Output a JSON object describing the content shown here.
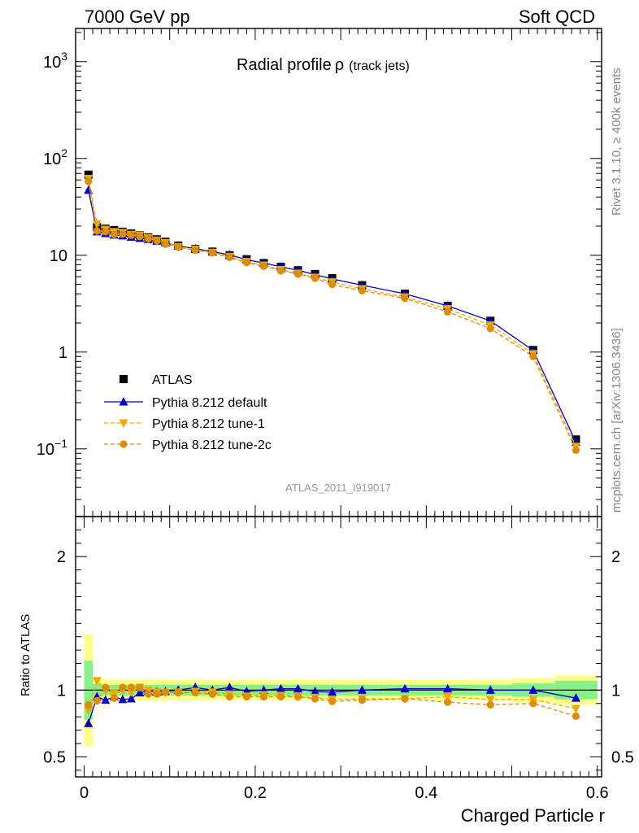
{
  "header": {
    "left": "7000 GeV pp",
    "right": "Soft QCD",
    "side_rivet": "Rivet 3.1.10, ≥ 400k events",
    "side_mcplots": "mcplots.cern.ch [arXiv:1306.3436]",
    "watermark": "ATLAS_2011_I919017"
  },
  "colors": {
    "atlas": "#000000",
    "default": "#0000cc",
    "tune1": "#f0a800",
    "tune2c": "#e08c00",
    "band_green": "#88f088",
    "band_yellow": "#ffff88"
  },
  "chart_data": [
    {
      "type": "line",
      "title": "Radial profile",
      "title_symbol": "ρ",
      "title_suffix": "(track jets)",
      "yscale": "log",
      "ylim": [
        0.02,
        2200
      ],
      "y_ticks": [
        {
          "value": 0.1,
          "base": "10",
          "exp": "−1"
        },
        {
          "value": 1,
          "label": "1"
        },
        {
          "value": 10,
          "label": "10"
        },
        {
          "value": 100,
          "base": "10",
          "exp": "2"
        },
        {
          "value": 1000,
          "base": "10",
          "exp": "3"
        }
      ],
      "legend": [
        "ATLAS",
        "Pythia 8.212 default",
        "Pythia 8.212 tune-1",
        "Pythia 8.212 tune-2c"
      ],
      "legend_position": "bottom-left",
      "x": [
        0.005,
        0.015,
        0.025,
        0.035,
        0.045,
        0.055,
        0.065,
        0.075,
        0.085,
        0.095,
        0.11,
        0.13,
        0.15,
        0.17,
        0.19,
        0.21,
        0.23,
        0.25,
        0.27,
        0.29,
        0.325,
        0.375,
        0.425,
        0.475,
        0.525,
        0.575
      ],
      "series": [
        {
          "name": "ATLAS",
          "values": [
            68,
            19.5,
            18.8,
            18.2,
            17.5,
            16.8,
            16.1,
            15.3,
            14.6,
            13.8,
            12.6,
            11.6,
            10.9,
            10.0,
            9.1,
            8.3,
            7.6,
            7.0,
            6.4,
            5.8,
            4.9,
            4.0,
            3.0,
            2.1,
            1.05,
            0.125
          ]
        },
        {
          "name": "Pythia 8.212 default",
          "values": [
            47,
            17.5,
            16.8,
            16.2,
            15.9,
            15.4,
            15.0,
            14.6,
            14.0,
            13.4,
            12.5,
            11.7,
            10.9,
            10.1,
            9.0,
            8.3,
            7.6,
            7.0,
            6.3,
            5.7,
            4.9,
            4.0,
            3.0,
            2.1,
            1.04,
            0.117
          ]
        },
        {
          "name": "Pythia 8.212 tune-1",
          "values": [
            62,
            21,
            18.5,
            17.5,
            17.2,
            16.4,
            16.1,
            15.1,
            14.3,
            13.5,
            12.3,
            11.5,
            10.7,
            9.7,
            8.6,
            7.9,
            7.1,
            6.5,
            5.9,
            5.3,
            4.5,
            3.7,
            2.8,
            1.9,
            0.96,
            0.106
          ]
        },
        {
          "name": "Pythia 8.212 tune-2c",
          "values": [
            58,
            17.8,
            17.5,
            16.4,
            16.5,
            16.1,
            15.6,
            14.8,
            14.1,
            13.0,
            12.1,
            11.3,
            10.6,
            9.5,
            8.4,
            7.7,
            6.9,
            6.4,
            5.8,
            5.0,
            4.3,
            3.6,
            2.6,
            1.75,
            0.9,
            0.097
          ]
        }
      ]
    },
    {
      "type": "line",
      "ylabel": "Ratio to ATLAS",
      "xlabel": "Charged Particle r",
      "xlim": [
        -0.01,
        0.605
      ],
      "ylim": [
        0.35,
        2.3
      ],
      "y_ticks": [
        0.5,
        1,
        2
      ],
      "y_tick_labels": [
        "0.5",
        "1",
        "2"
      ],
      "x_ticks": [
        0,
        0.2,
        0.4,
        0.6
      ],
      "x_tick_labels": [
        "0",
        "0.2",
        "0.4",
        "0.6"
      ],
      "reference": 1,
      "bands": {
        "bin_edges": [
          0.0,
          0.01,
          0.02,
          0.03,
          0.04,
          0.05,
          0.06,
          0.07,
          0.08,
          0.09,
          0.1,
          0.12,
          0.14,
          0.16,
          0.18,
          0.2,
          0.22,
          0.24,
          0.26,
          0.28,
          0.3,
          0.35,
          0.4,
          0.45,
          0.5,
          0.55,
          0.6
        ],
        "green": [
          0.22,
          0.045,
          0.04,
          0.04,
          0.04,
          0.04,
          0.04,
          0.04,
          0.04,
          0.04,
          0.04,
          0.04,
          0.04,
          0.04,
          0.04,
          0.04,
          0.04,
          0.04,
          0.04,
          0.04,
          0.04,
          0.04,
          0.04,
          0.04,
          0.05,
          0.07
        ],
        "yellow": [
          0.42,
          0.09,
          0.085,
          0.08,
          0.08,
          0.08,
          0.08,
          0.08,
          0.08,
          0.08,
          0.075,
          0.075,
          0.075,
          0.075,
          0.075,
          0.075,
          0.075,
          0.075,
          0.075,
          0.075,
          0.075,
          0.075,
          0.075,
          0.075,
          0.09,
          0.11
        ]
      },
      "series": [
        {
          "name": "Pythia 8.212 default",
          "values": [
            0.75,
            0.95,
            0.925,
            0.95,
            0.93,
            0.935,
            0.98,
            0.99,
            0.985,
            0.99,
            1.0,
            1.02,
            1.0,
            1.02,
            0.99,
            1.0,
            1.01,
            1.01,
            0.99,
            0.985,
            1.0,
            1.01,
            1.01,
            1.0,
            1.0,
            0.94
          ]
        },
        {
          "name": "Pythia 8.212 tune-1",
          "values": [
            0.85,
            1.07,
            1.0,
            0.98,
            1.0,
            0.985,
            1.02,
            1.0,
            0.985,
            0.98,
            0.985,
            0.99,
            0.985,
            0.97,
            0.955,
            0.965,
            0.96,
            0.95,
            0.945,
            0.93,
            0.935,
            0.935,
            0.95,
            0.93,
            0.93,
            0.86
          ]
        },
        {
          "name": "Pythia 8.212 tune-2c",
          "values": [
            0.89,
            0.92,
            1.02,
            0.94,
            1.02,
            1.02,
            1.02,
            0.97,
            0.97,
            0.985,
            0.98,
            0.98,
            0.97,
            0.95,
            0.95,
            0.95,
            0.95,
            0.95,
            0.935,
            0.915,
            0.925,
            0.935,
            0.91,
            0.89,
            0.9,
            0.805
          ]
        }
      ]
    }
  ]
}
